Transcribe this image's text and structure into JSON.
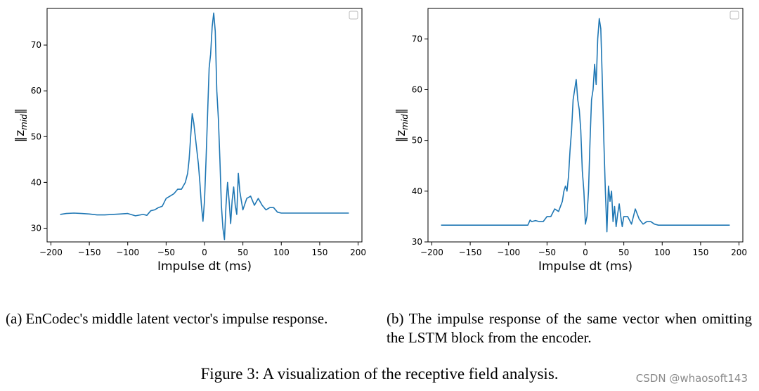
{
  "figure_caption": "Figure 3: A visualization of the receptive field analysis.",
  "watermark": "CSDN @whaosoft143",
  "line_color": "#1f77b4",
  "panels": [
    {
      "caption": "(a) EnCodec's middle latent vector's impulse response.",
      "xlabel": "Impulse dt (ms)",
      "ylabel": "‖z_mid‖",
      "ylabel_main": "‖z",
      "ylabel_sub": "mid",
      "ylabel_end": "‖"
    },
    {
      "caption": "(b) The impulse response of the same vector when omitting the LSTM block from the encoder.",
      "xlabel": "Impulse dt (ms)",
      "ylabel": "‖z_mid‖",
      "ylabel_main": "‖z",
      "ylabel_sub": "mid",
      "ylabel_end": "‖"
    }
  ],
  "chart_data": [
    {
      "type": "line",
      "title": "",
      "xlabel": "Impulse dt (ms)",
      "ylabel": "‖z_mid‖",
      "xlim": [
        -205,
        205
      ],
      "ylim": [
        27,
        78
      ],
      "xticks": [
        -200,
        -150,
        -100,
        -50,
        0,
        50,
        100,
        150,
        200
      ],
      "yticks": [
        30,
        40,
        50,
        60,
        70
      ],
      "legend": "empty box, top-right",
      "series": [
        {
          "x": [
            -188,
            -180,
            -170,
            -160,
            -150,
            -140,
            -130,
            -120,
            -110,
            -100,
            -90,
            -80,
            -75,
            -70,
            -65,
            -60,
            -55,
            -50,
            -45,
            -40,
            -35,
            -30,
            -25,
            -22,
            -20,
            -18,
            -16,
            -14,
            -12,
            -10,
            -8,
            -6,
            -4,
            -2,
            0,
            2,
            4,
            6,
            8,
            10,
            12,
            14,
            16,
            18,
            20,
            22,
            24,
            26,
            28,
            30,
            32,
            34,
            36,
            38,
            40,
            42,
            44,
            46,
            48,
            50,
            55,
            60,
            65,
            70,
            75,
            80,
            85,
            90,
            95,
            100,
            120,
            150,
            188
          ],
          "y": [
            33,
            33.2,
            33.3,
            33.2,
            33.1,
            32.9,
            32.9,
            33.0,
            33.1,
            33.2,
            32.7,
            33.0,
            32.8,
            33.8,
            34.0,
            34.5,
            34.8,
            36.5,
            37.0,
            37.5,
            38.5,
            38.5,
            40.0,
            42.0,
            45.0,
            50.0,
            55.0,
            53.0,
            50.0,
            47.0,
            44.0,
            40.0,
            35.0,
            31.5,
            36.0,
            45.0,
            55.0,
            65.0,
            68.0,
            74.0,
            77.0,
            73.0,
            60.0,
            54.0,
            45.0,
            35.0,
            30.0,
            27.5,
            35.0,
            40.0,
            36.0,
            31.0,
            36.0,
            39.0,
            35.0,
            33.0,
            42.0,
            38.0,
            36.0,
            34.0,
            36.5,
            37.0,
            35.0,
            36.5,
            35.0,
            34.0,
            34.5,
            34.5,
            33.5,
            33.3,
            33.3,
            33.3,
            33.3
          ]
        }
      ]
    },
    {
      "type": "line",
      "title": "",
      "xlabel": "Impulse dt (ms)",
      "ylabel": "‖z_mid‖",
      "xlim": [
        -205,
        205
      ],
      "ylim": [
        30,
        76
      ],
      "xticks": [
        -200,
        -150,
        -100,
        -50,
        0,
        50,
        100,
        150,
        200
      ],
      "yticks": [
        30,
        40,
        50,
        60,
        70
      ],
      "legend": "empty box, top-right",
      "series": [
        {
          "x": [
            -188,
            -150,
            -100,
            -75,
            -72,
            -70,
            -65,
            -60,
            -55,
            -50,
            -45,
            -40,
            -35,
            -30,
            -28,
            -26,
            -24,
            -22,
            -20,
            -18,
            -16,
            -14,
            -12,
            -10,
            -8,
            -6,
            -4,
            -2,
            0,
            2,
            4,
            6,
            8,
            10,
            12,
            14,
            16,
            18,
            20,
            22,
            24,
            26,
            28,
            30,
            32,
            34,
            36,
            38,
            40,
            42,
            44,
            46,
            48,
            50,
            55,
            60,
            65,
            70,
            75,
            80,
            85,
            90,
            95,
            100,
            150,
            188
          ],
          "y": [
            33.3,
            33.3,
            33.3,
            33.3,
            34.3,
            34.0,
            34.2,
            34.0,
            34.0,
            35.0,
            35.0,
            36.5,
            36.0,
            38.0,
            40.0,
            41.0,
            40.0,
            43.0,
            48.0,
            52.0,
            58.0,
            60.0,
            62.0,
            58.0,
            56.0,
            52.0,
            44.0,
            40.0,
            33.5,
            35.0,
            40.0,
            50.0,
            58.0,
            60.0,
            65.0,
            61.0,
            70.0,
            74.0,
            72.0,
            62.0,
            50.0,
            40.0,
            32.0,
            41.0,
            38.0,
            40.0,
            34.0,
            37.0,
            33.0,
            35.5,
            37.5,
            35.0,
            33.0,
            35.0,
            35.0,
            33.5,
            36.5,
            34.5,
            33.5,
            34.0,
            34.0,
            33.5,
            33.3,
            33.3,
            33.3,
            33.3
          ]
        }
      ]
    }
  ]
}
